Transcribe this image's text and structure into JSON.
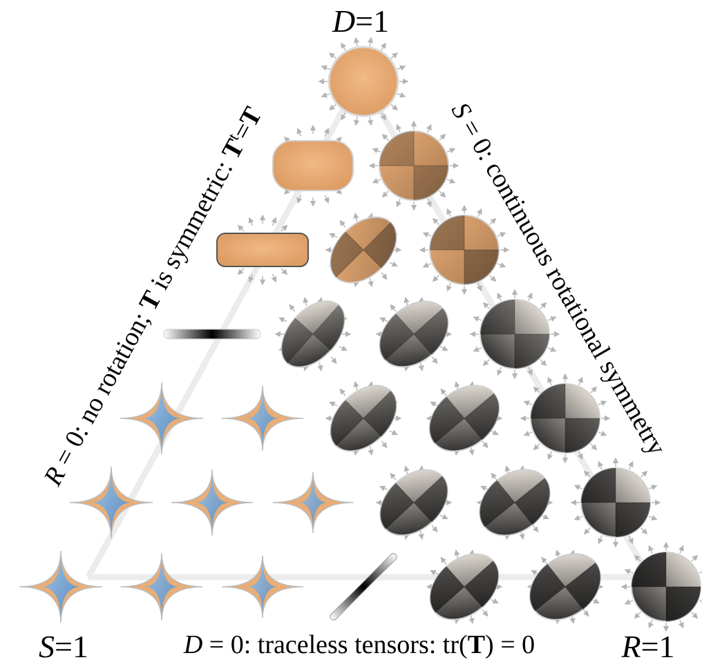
{
  "vertices": {
    "top": {
      "var": "D",
      "eq": "=",
      "val": "1"
    },
    "left": {
      "var": "S",
      "eq": "=",
      "val": "1"
    },
    "right": {
      "var": "R",
      "eq": "=",
      "val": "1"
    }
  },
  "edges": {
    "left": {
      "var": "R",
      "rest": " = 0: no rotation; ",
      "bold": "T",
      "rest2": " is symmetric: ",
      "bold2": "T",
      "sup": "t",
      "eq": "=",
      "bold3": "T"
    },
    "right": {
      "var": "S",
      "rest": " = 0: continuous rotational symmetry"
    },
    "bottom": {
      "var": "D",
      "rest": " = 0: traceless tensors: tr(",
      "bold": "T",
      "rest2": ") = 0"
    }
  },
  "colors": {
    "orange": "#e9ad76",
    "blue": "#7fb3e6",
    "dark": "#111111",
    "light": "#ffffff",
    "arrow": "#b4b4b4",
    "frame": "#ededed"
  },
  "glyph_grid": [
    [
      "ring-disc"
    ],
    [
      "rounded-rect",
      "pinwheel"
    ],
    [
      "long-rect",
      "ellipse",
      "pinwheel"
    ],
    [
      "line",
      "ellipse",
      "ellipse",
      "pinwheel"
    ],
    [
      "star",
      "star",
      "ellipse",
      "ellipse",
      "pinwheel"
    ],
    [
      "star",
      "star",
      "star",
      "ellipse",
      "ellipse",
      "pinwheel"
    ],
    [
      "star",
      "star",
      "star",
      "line",
      "ellipse",
      "ellipse",
      "pinwheel"
    ]
  ]
}
